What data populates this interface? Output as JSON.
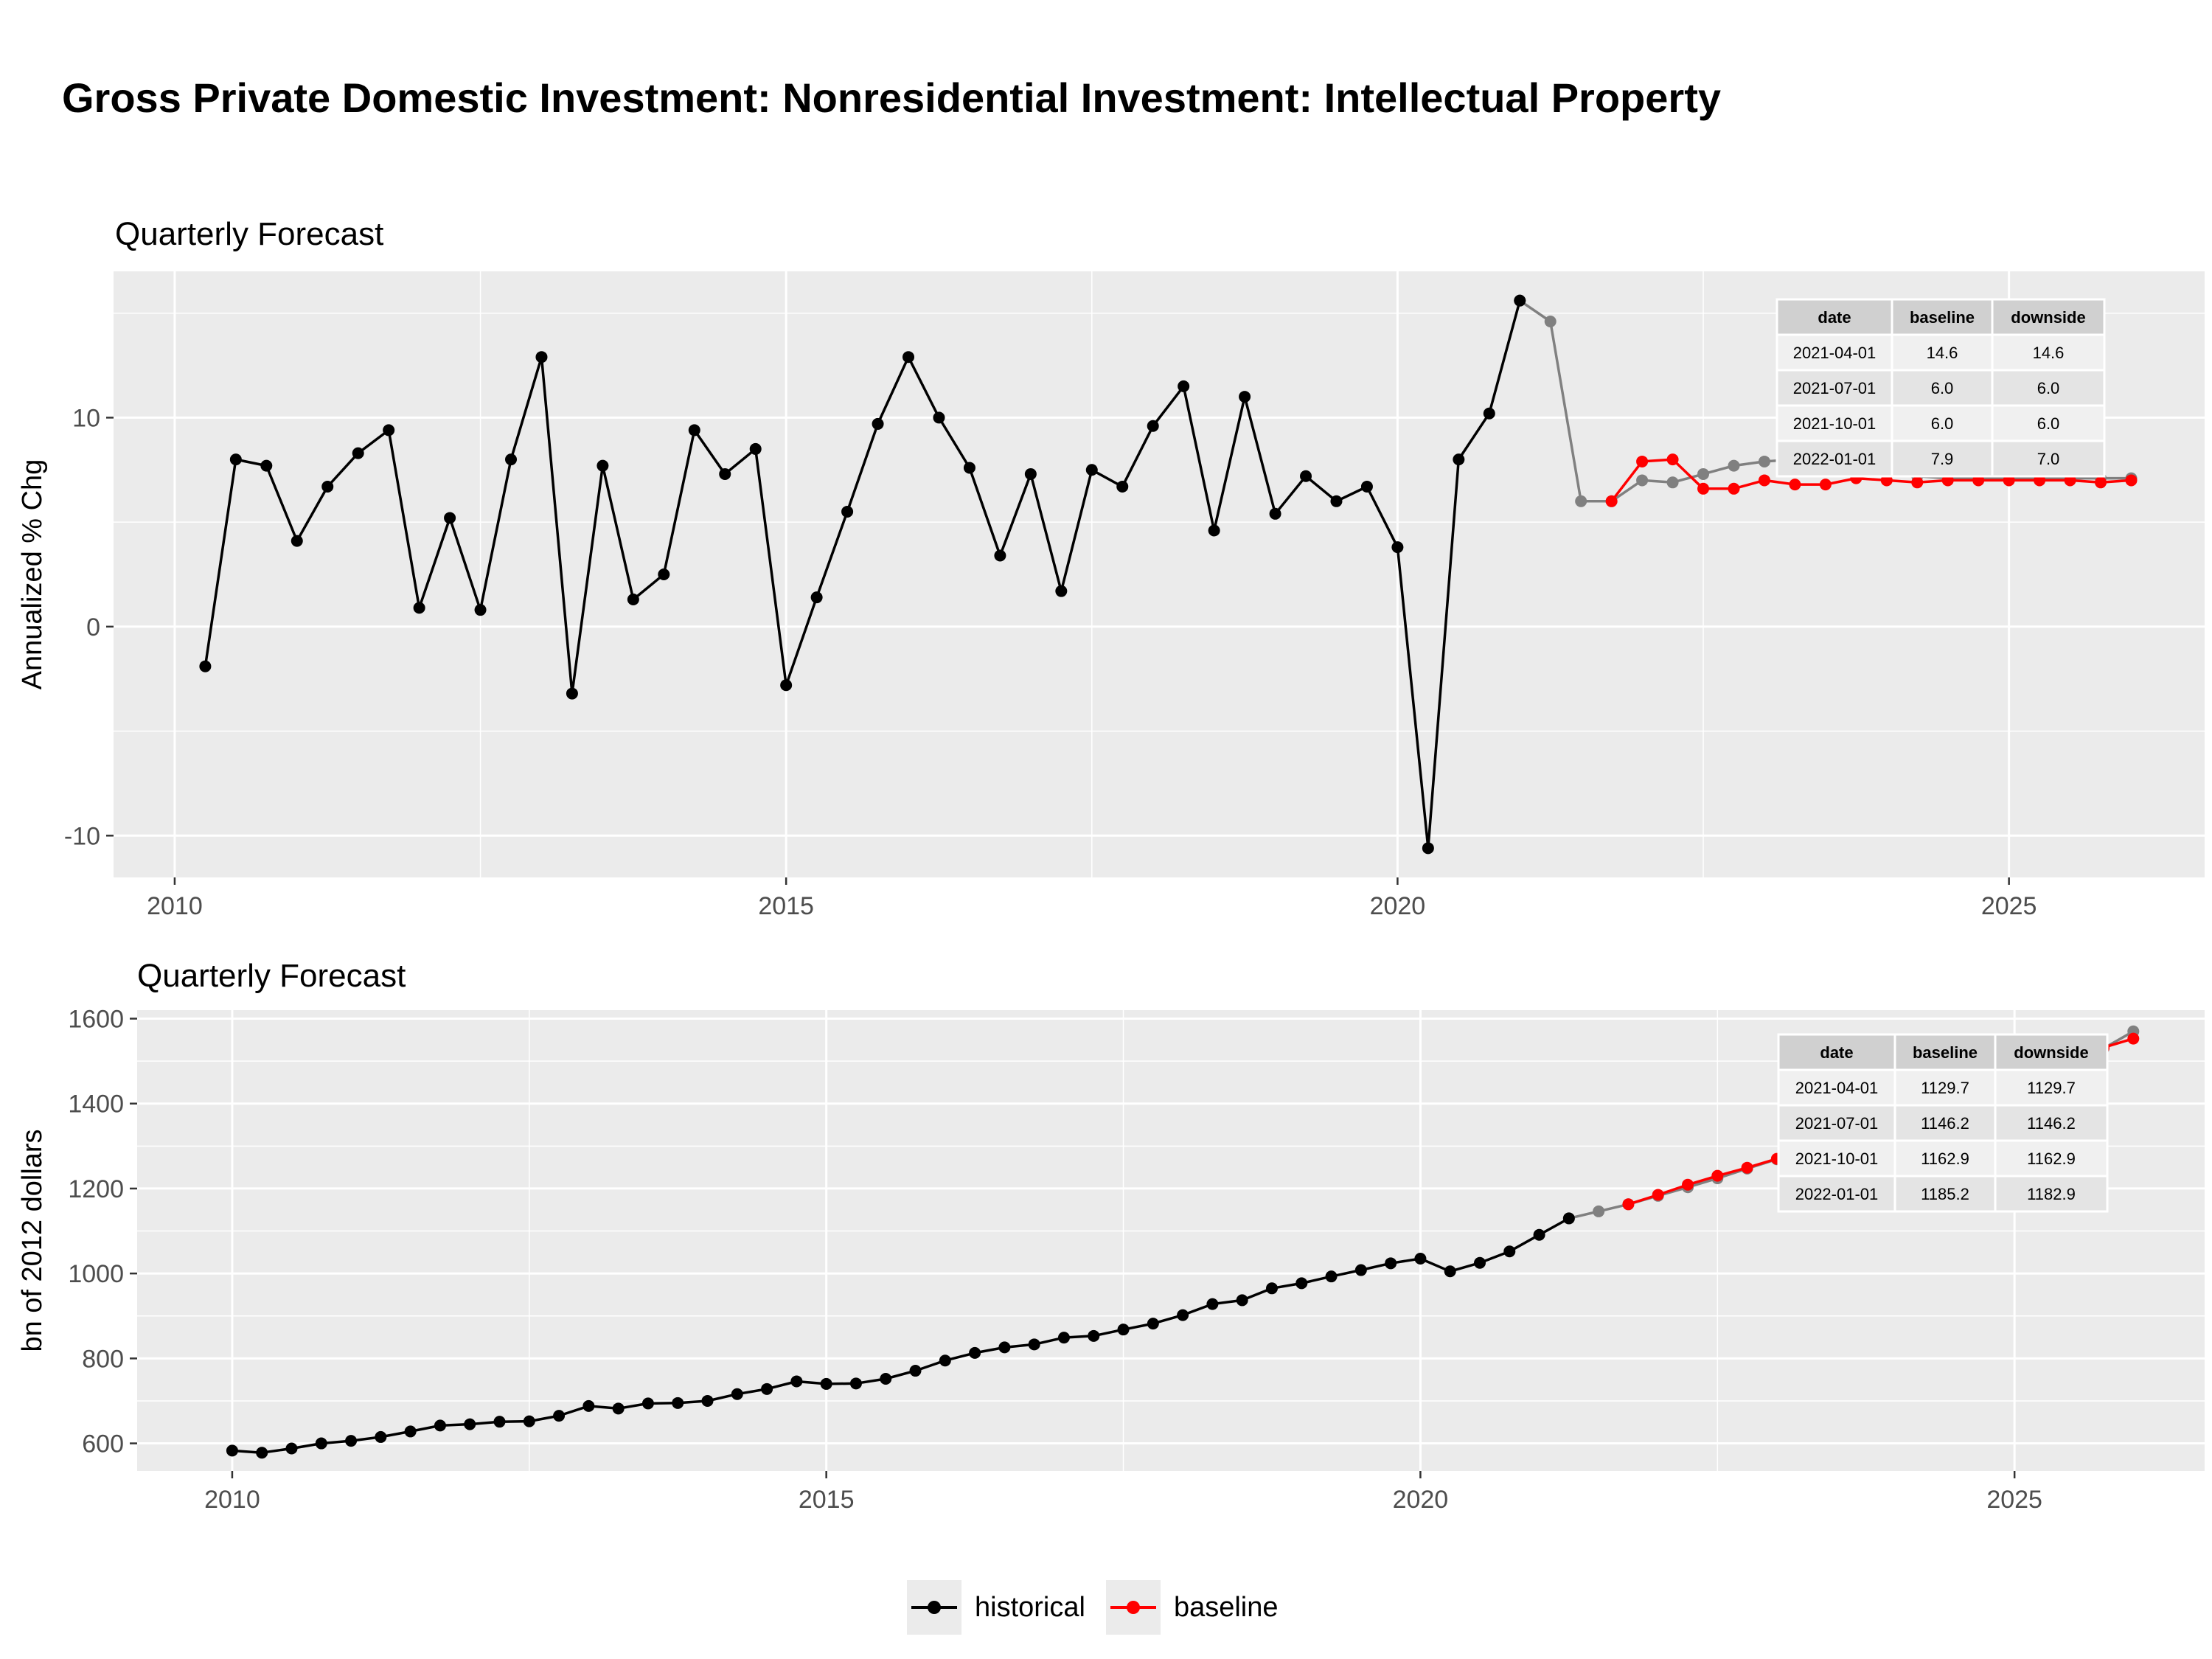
{
  "title": "Gross Private Domestic Investment: Nonresidential Investment: Intellectual Property",
  "colors": {
    "historical": "#000000",
    "baseline": "#ff0000",
    "downside": "#808080",
    "panel": "#ebebeb",
    "grid": "#ffffff"
  },
  "legend": [
    {
      "label": "historical",
      "color": "#000000"
    },
    {
      "label": "baseline",
      "color": "#ff0000"
    }
  ],
  "chart_data": [
    {
      "type": "line",
      "title": "Quarterly Forecast",
      "xlabel": "",
      "ylabel": "Annualized % Chg",
      "xlim": [
        2009.5,
        2026.6
      ],
      "ylim": [
        -12,
        17
      ],
      "xticks": [
        2010,
        2015,
        2020,
        2025
      ],
      "yticks": [
        -10,
        0,
        10
      ],
      "grid": true,
      "series": [
        {
          "name": "historical",
          "color": "#000000",
          "x": [
            2010.25,
            2010.5,
            2010.75,
            2011.0,
            2011.25,
            2011.5,
            2011.75,
            2012.0,
            2012.25,
            2012.5,
            2012.75,
            2013.0,
            2013.25,
            2013.5,
            2013.75,
            2014.0,
            2014.25,
            2014.5,
            2014.75,
            2015.0,
            2015.25,
            2015.5,
            2015.75,
            2016.0,
            2016.25,
            2016.5,
            2016.75,
            2017.0,
            2017.25,
            2017.5,
            2017.75,
            2018.0,
            2018.25,
            2018.5,
            2018.75,
            2019.0,
            2019.25,
            2019.5,
            2019.75,
            2020.0,
            2020.25,
            2020.5,
            2020.75,
            2021.0
          ],
          "values": [
            -1.9,
            8.0,
            7.7,
            4.1,
            6.7,
            8.3,
            9.4,
            0.9,
            5.2,
            0.8,
            8.0,
            12.9,
            -3.2,
            7.7,
            1.3,
            2.5,
            9.4,
            7.3,
            8.5,
            -2.8,
            1.4,
            5.5,
            9.7,
            12.9,
            10.0,
            7.6,
            3.4,
            7.3,
            1.7,
            7.5,
            6.7,
            9.6,
            11.5,
            4.6,
            11.0,
            5.4,
            7.2,
            6.0,
            6.7,
            3.8,
            -10.6,
            8.0,
            10.2,
            15.6
          ]
        },
        {
          "name": "downside",
          "color": "#808080",
          "x": [
            2021.0,
            2021.25,
            2021.5,
            2021.75,
            2022.0,
            2022.25,
            2022.5,
            2022.75,
            2023.0,
            2023.25,
            2023.5,
            2023.75,
            2024.0,
            2024.25,
            2024.5,
            2024.75,
            2025.0,
            2025.25,
            2025.5,
            2025.75,
            2026.0
          ],
          "values": [
            15.6,
            14.6,
            6.0,
            6.0,
            7.0,
            6.9,
            7.3,
            7.7,
            7.9,
            8.0,
            7.7,
            7.5,
            7.3,
            7.2,
            7.1,
            7.1,
            7.1,
            7.1,
            7.1,
            7.1,
            7.1
          ]
        },
        {
          "name": "baseline",
          "color": "#ff0000",
          "x": [
            2021.75,
            2022.0,
            2022.25,
            2022.5,
            2022.75,
            2023.0,
            2023.25,
            2023.5,
            2023.75,
            2024.0,
            2024.25,
            2024.5,
            2024.75,
            2025.0,
            2025.25,
            2025.5,
            2025.75,
            2026.0
          ],
          "values": [
            6.0,
            7.9,
            8.0,
            6.6,
            6.6,
            7.0,
            6.8,
            6.8,
            7.1,
            7.0,
            6.9,
            7.0,
            7.0,
            7.0,
            7.0,
            7.0,
            6.9,
            7.0
          ]
        }
      ],
      "table": {
        "columns": [
          "date",
          "baseline",
          "downside"
        ],
        "rows": [
          [
            "2021-04-01",
            "14.6",
            "14.6"
          ],
          [
            "2021-07-01",
            "6.0",
            "6.0"
          ],
          [
            "2021-10-01",
            "6.0",
            "6.0"
          ],
          [
            "2022-01-01",
            "7.9",
            "7.0"
          ]
        ]
      }
    },
    {
      "type": "line",
      "title": "Quarterly Forecast",
      "xlabel": "",
      "ylabel": "bn of 2012 dollars",
      "xlim": [
        2009.2,
        2026.6
      ],
      "ylim": [
        535,
        1620
      ],
      "xticks": [
        2010,
        2015,
        2020,
        2025
      ],
      "yticks": [
        600,
        800,
        1000,
        1200,
        1400,
        1600
      ],
      "grid": true,
      "series": [
        {
          "name": "historical",
          "color": "#000000",
          "x": [
            2010.0,
            2010.25,
            2010.5,
            2010.75,
            2011.0,
            2011.25,
            2011.5,
            2011.75,
            2012.0,
            2012.25,
            2012.5,
            2012.75,
            2013.0,
            2013.25,
            2013.5,
            2013.75,
            2014.0,
            2014.25,
            2014.5,
            2014.75,
            2015.0,
            2015.25,
            2015.5,
            2015.75,
            2016.0,
            2016.25,
            2016.5,
            2016.75,
            2017.0,
            2017.25,
            2017.5,
            2017.75,
            2018.0,
            2018.25,
            2018.5,
            2018.75,
            2019.0,
            2019.25,
            2019.5,
            2019.75,
            2020.0,
            2020.25,
            2020.5,
            2020.75,
            2021.0,
            2021.25
          ],
          "values": [
            583,
            578,
            588,
            600,
            606,
            615,
            628,
            642,
            645,
            651,
            652,
            665,
            688,
            682,
            694,
            695,
            700,
            716,
            728,
            746,
            740,
            741,
            752,
            771,
            795,
            813,
            826,
            833,
            849,
            853,
            868,
            882,
            902,
            928,
            937,
            965,
            977,
            993,
            1008,
            1024,
            1035,
            1005,
            1025,
            1052,
            1091,
            1129.7
          ]
        },
        {
          "name": "downside",
          "color": "#808080",
          "x": [
            2021.25,
            2021.5,
            2021.75,
            2022.0,
            2022.25,
            2022.5,
            2022.75,
            2023.0,
            2023.25,
            2023.5,
            2023.75,
            2024.0,
            2024.25,
            2024.5,
            2024.75,
            2025.0,
            2025.25,
            2025.5,
            2025.75,
            2026.0
          ],
          "values": [
            1129.7,
            1146.2,
            1162.9,
            1182.9,
            1203,
            1224,
            1247,
            1269,
            1291,
            1313,
            1336,
            1359,
            1383,
            1407,
            1431,
            1455,
            1480,
            1505,
            1530,
            1570
          ]
        },
        {
          "name": "baseline",
          "color": "#ff0000",
          "x": [
            2021.75,
            2022.0,
            2022.25,
            2022.5,
            2022.75,
            2023.0,
            2023.25,
            2023.5,
            2023.75,
            2024.0,
            2024.25,
            2024.5,
            2024.75,
            2025.0,
            2025.25,
            2025.5,
            2025.75,
            2026.0
          ],
          "values": [
            1162.9,
            1185.2,
            1209,
            1230,
            1249,
            1270,
            1292,
            1315,
            1338,
            1361,
            1385,
            1409,
            1433,
            1457,
            1482,
            1507,
            1532,
            1553
          ]
        }
      ],
      "table": {
        "columns": [
          "date",
          "baseline",
          "downside"
        ],
        "rows": [
          [
            "2021-04-01",
            "1129.7",
            "1129.7"
          ],
          [
            "2021-07-01",
            "1146.2",
            "1146.2"
          ],
          [
            "2021-10-01",
            "1162.9",
            "1162.9"
          ],
          [
            "2022-01-01",
            "1185.2",
            "1182.9"
          ]
        ]
      }
    }
  ]
}
